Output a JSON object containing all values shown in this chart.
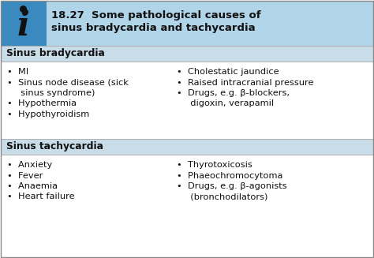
{
  "title_number": "18.27",
  "title_text": "  Some pathological causes of\nsinus bradycardia and tachycardia",
  "header_bg": "#b0d4e8",
  "subheader_bg": "#c8dde8",
  "body_bg": "#ffffff",
  "border_color": "#999999",
  "icon_bg": "#3a8abf",
  "section1_header": "Sinus bradycardia",
  "section2_header": "Sinus tachycardia",
  "section1_left": [
    "MI",
    "Sinus node disease (sick\n  sinus syndrome)",
    "Hypothermia",
    "Hypothyroidism"
  ],
  "section1_right": [
    "Cholestatic jaundice",
    "Raised intracranial pressure",
    "Drugs, e.g. β-blockers,\n  digoxin, verapamil"
  ],
  "section2_left": [
    "Anxiety",
    "Fever",
    "Anaemia",
    "Heart failure"
  ],
  "section2_right": [
    "Thyrotoxicosis",
    "Phaeochromocytoma",
    "Drugs, e.g. β-agonists\n  (bronchodilators)"
  ],
  "font_size_title": 9.5,
  "font_size_body": 8.2,
  "font_size_header": 8.8,
  "font_size_icon": 30
}
